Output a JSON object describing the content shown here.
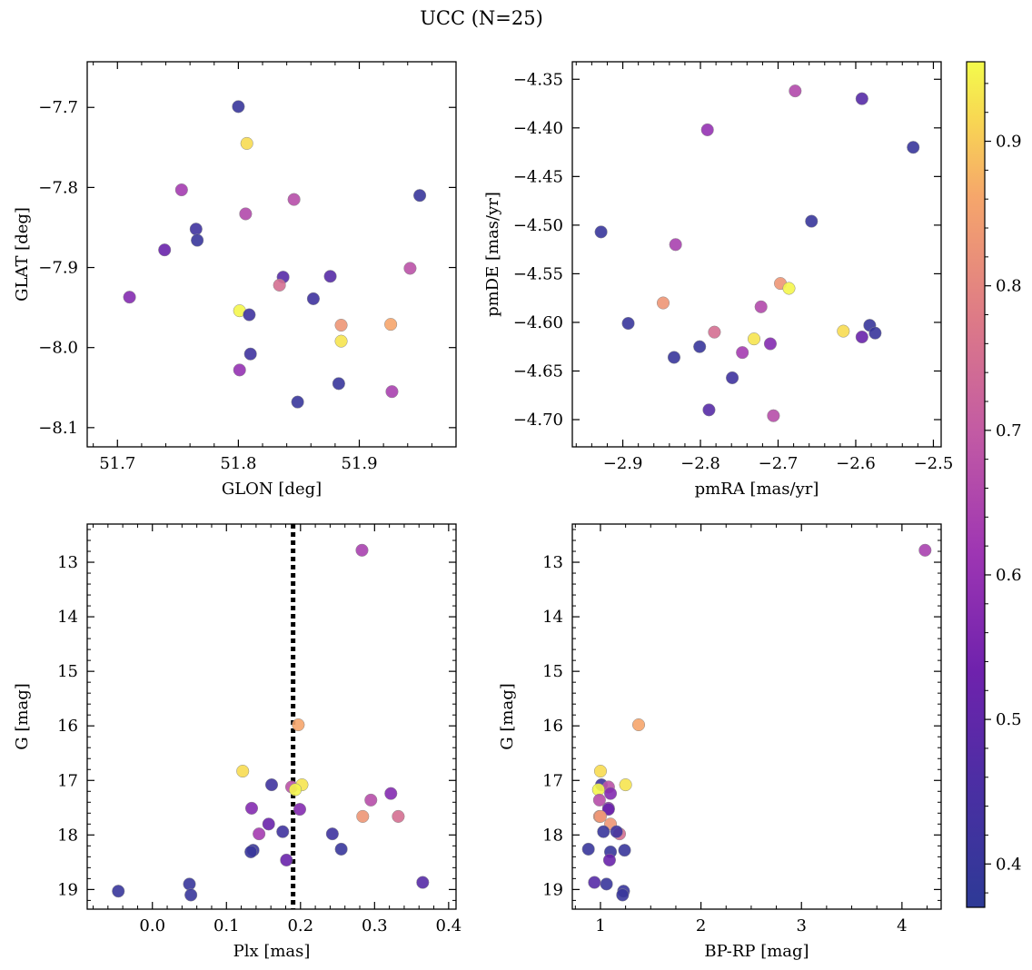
{
  "figure": {
    "title": "UCC (N=25)"
  },
  "colorbar": {
    "colormap": "plasma",
    "range": [
      0.37,
      0.955
    ],
    "ticks": [
      0.4,
      0.5,
      0.6,
      0.7,
      0.8,
      0.9
    ],
    "tick_labels": [
      "0.4",
      "0.5",
      "0.6",
      "0.7",
      "0.8",
      "0.9"
    ]
  },
  "chart_data": [
    {
      "type": "scatter",
      "id": "glon-glat",
      "xlabel": "GLON [deg]",
      "ylabel": "GLAT [deg]",
      "xlim": [
        51.675,
        51.98
      ],
      "ylim": [
        -8.124,
        -7.643
      ],
      "x_ticks": [
        51.7,
        51.8,
        51.9
      ],
      "x_tick_labels": [
        "51.7",
        "51.8",
        "51.9"
      ],
      "y_ticks": [
        -7.7,
        -7.8,
        -7.9,
        -8.0,
        -8.1
      ],
      "y_tick_labels": [
        "−7.7",
        "−7.8",
        "−7.9",
        "−8.0",
        "−8.1"
      ],
      "x": [
        51.8,
        51.807,
        51.753,
        51.846,
        51.806,
        51.95,
        51.765,
        51.766,
        51.739,
        51.942,
        51.837,
        51.834,
        51.876,
        51.71,
        51.862,
        51.801,
        51.809,
        51.885,
        51.926,
        51.885,
        51.81,
        51.801,
        51.883,
        51.927,
        51.849
      ],
      "y": [
        -7.699,
        -7.745,
        -7.803,
        -7.815,
        -7.833,
        -7.81,
        -7.852,
        -7.866,
        -7.878,
        -7.901,
        -7.912,
        -7.922,
        -7.911,
        -7.937,
        -7.939,
        -7.954,
        -7.959,
        -7.972,
        -7.971,
        -7.992,
        -8.008,
        -8.028,
        -8.045,
        -8.055,
        -8.068
      ],
      "color_values": [
        0.4,
        0.92,
        0.63,
        0.67,
        0.66,
        0.4,
        0.42,
        0.4,
        0.52,
        0.68,
        0.48,
        0.75,
        0.48,
        0.57,
        0.42,
        0.95,
        0.42,
        0.83,
        0.86,
        0.93,
        0.42,
        0.6,
        0.4,
        0.64,
        0.4
      ]
    },
    {
      "type": "scatter",
      "id": "pmra-pmde",
      "xlabel": "pmRA [mas/yr]",
      "ylabel": "pmDE [mas/yr]",
      "xlim": [
        -2.965,
        -2.49
      ],
      "ylim": [
        -4.728,
        -4.332
      ],
      "x_ticks": [
        -2.9,
        -2.8,
        -2.7,
        -2.6,
        -2.5
      ],
      "x_tick_labels": [
        "−2.9",
        "−2.8",
        "−2.7",
        "−2.6",
        "−2.5"
      ],
      "y_ticks": [
        -4.35,
        -4.4,
        -4.45,
        -4.5,
        -4.55,
        -4.6,
        -4.65,
        -4.7
      ],
      "y_tick_labels": [
        "−4.35",
        "−4.40",
        "−4.45",
        "−4.50",
        "−4.55",
        "−4.60",
        "−4.65",
        "−4.70"
      ],
      "x": [
        -2.678,
        -2.592,
        -2.791,
        -2.526,
        -2.657,
        -2.928,
        -2.832,
        -2.697,
        -2.686,
        -2.848,
        -2.722,
        -2.782,
        -2.893,
        -2.616,
        -2.582,
        -2.592,
        -2.575,
        -2.731,
        -2.71,
        -2.801,
        -2.746,
        -2.834,
        -2.759,
        -2.789,
        -2.706
      ],
      "y": [
        -4.362,
        -4.37,
        -4.402,
        -4.42,
        -4.496,
        -4.507,
        -4.52,
        -4.56,
        -4.565,
        -4.58,
        -4.584,
        -4.61,
        -4.601,
        -4.609,
        -4.603,
        -4.615,
        -4.611,
        -4.617,
        -4.622,
        -4.625,
        -4.631,
        -4.636,
        -4.657,
        -4.69,
        -4.696
      ],
      "color_values": [
        0.66,
        0.48,
        0.6,
        0.4,
        0.4,
        0.4,
        0.64,
        0.83,
        0.95,
        0.83,
        0.66,
        0.75,
        0.4,
        0.92,
        0.4,
        0.52,
        0.4,
        0.93,
        0.57,
        0.4,
        0.63,
        0.4,
        0.42,
        0.48,
        0.67
      ]
    },
    {
      "type": "scatter",
      "id": "plx-g",
      "xlabel": "Plx [mas]",
      "ylabel": "G [mag]",
      "xlim": [
        -0.088,
        0.41
      ],
      "ylim": [
        19.36,
        12.3
      ],
      "y_inverted": true,
      "x_ticks": [
        0.0,
        0.1,
        0.2,
        0.3,
        0.4
      ],
      "x_tick_labels": [
        "0.0",
        "0.1",
        "0.2",
        "0.3",
        "0.4"
      ],
      "y_ticks": [
        13,
        14,
        15,
        16,
        17,
        18,
        19
      ],
      "y_tick_labels": [
        "13",
        "14",
        "15",
        "16",
        "17",
        "18",
        "19"
      ],
      "vertical_line": {
        "x": 0.19,
        "style": "dotted"
      },
      "x": [
        0.283,
        0.197,
        0.122,
        0.161,
        0.188,
        0.202,
        0.193,
        0.322,
        0.295,
        0.134,
        0.199,
        0.157,
        0.144,
        0.176,
        0.243,
        0.284,
        0.332,
        0.136,
        0.133,
        0.181,
        0.255,
        -0.046,
        0.05,
        0.365,
        0.052
      ],
      "y": [
        12.78,
        15.98,
        16.83,
        17.08,
        17.12,
        17.08,
        17.17,
        17.24,
        17.36,
        17.51,
        17.53,
        17.8,
        17.98,
        17.94,
        17.98,
        17.66,
        17.66,
        18.28,
        18.31,
        18.46,
        18.26,
        19.03,
        18.9,
        18.87,
        19.1
      ],
      "color_values": [
        0.64,
        0.86,
        0.92,
        0.42,
        0.68,
        0.93,
        0.95,
        0.57,
        0.67,
        0.57,
        0.57,
        0.52,
        0.63,
        0.42,
        0.42,
        0.83,
        0.75,
        0.4,
        0.4,
        0.52,
        0.4,
        0.4,
        0.4,
        0.48,
        0.4
      ]
    },
    {
      "type": "scatter",
      "id": "bprp-g",
      "xlabel": "BP-RP [mag]",
      "ylabel": "G [mag]",
      "xlim": [
        0.72,
        4.39
      ],
      "ylim": [
        19.36,
        12.3
      ],
      "y_inverted": true,
      "x_ticks": [
        1,
        2,
        3,
        4
      ],
      "x_tick_labels": [
        "1",
        "2",
        "3",
        "4"
      ],
      "y_ticks": [
        13,
        14,
        15,
        16,
        17,
        18,
        19
      ],
      "y_tick_labels": [
        "13",
        "14",
        "15",
        "16",
        "17",
        "18",
        "19"
      ],
      "x": [
        4.23,
        1.38,
        1.0,
        1.01,
        1.08,
        1.25,
        0.98,
        1.1,
        0.99,
        1.08,
        1.08,
        1.1,
        1.19,
        0.99,
        1.03,
        1.16,
        1.24,
        0.88,
        1.1,
        1.09,
        1.23,
        1.0,
        1.06,
        0.94,
        1.22
      ],
      "y": [
        12.78,
        15.98,
        16.83,
        17.08,
        17.12,
        17.08,
        17.17,
        17.24,
        17.36,
        17.51,
        17.53,
        17.8,
        17.98,
        17.66,
        17.94,
        17.94,
        18.28,
        18.26,
        18.31,
        18.46,
        19.03,
        17.66,
        18.9,
        18.87,
        19.1
      ],
      "color_values": [
        0.64,
        0.86,
        0.92,
        0.42,
        0.68,
        0.93,
        0.95,
        0.57,
        0.67,
        0.57,
        0.52,
        0.83,
        0.75,
        0.83,
        0.4,
        0.42,
        0.4,
        0.4,
        0.4,
        0.52,
        0.4,
        0.83,
        0.4,
        0.48,
        0.4
      ]
    }
  ]
}
